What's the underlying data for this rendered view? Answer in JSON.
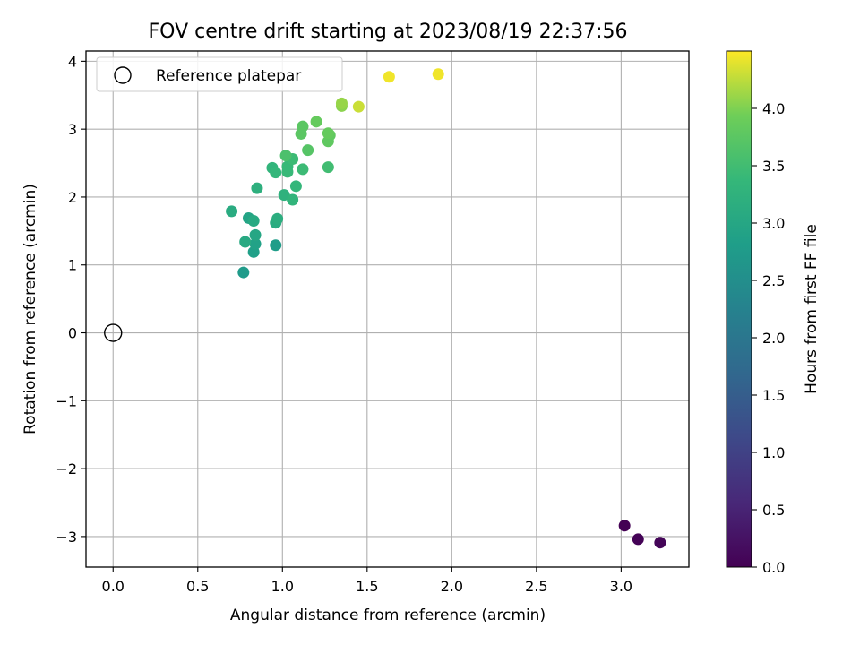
{
  "chart_data": {
    "type": "scatter",
    "title": "FOV centre drift starting at 2023/08/19 22:37:56",
    "xlabel": "Angular distance from reference (arcmin)",
    "ylabel": "Rotation from reference (arcmin)",
    "xlim": [
      -0.16,
      3.4
    ],
    "ylim": [
      -3.45,
      4.15
    ],
    "xticks": [
      0.0,
      0.5,
      1.0,
      1.5,
      2.0,
      2.5,
      3.0
    ],
    "xtick_labels": [
      "0.0",
      "0.5",
      "1.0",
      "1.5",
      "2.0",
      "2.5",
      "3.0"
    ],
    "yticks": [
      -3,
      -2,
      -1,
      0,
      1,
      2,
      3,
      4
    ],
    "ytick_labels": [
      "−3",
      "−2",
      "−1",
      "0",
      "1",
      "2",
      "3",
      "4"
    ],
    "grid": true,
    "legend": {
      "placement": "upper-left",
      "entries": [
        {
          "label": "Reference platepar",
          "marker": "open-circle",
          "x": 0.0,
          "y": 0.0
        }
      ]
    },
    "colorbar": {
      "label": "Hours from first FF file",
      "colormap": "viridis",
      "range": [
        0.0,
        4.5
      ],
      "ticks": [
        0.0,
        0.5,
        1.0,
        1.5,
        2.0,
        2.5,
        3.0,
        3.5,
        4.0
      ],
      "tick_labels": [
        "0.0",
        "0.5",
        "1.0",
        "1.5",
        "2.0",
        "2.5",
        "3.0",
        "3.5",
        "4.0"
      ]
    },
    "points": [
      {
        "x": 3.02,
        "y": -2.84,
        "hours": 0.0
      },
      {
        "x": 3.1,
        "y": -3.04,
        "hours": 0.03
      },
      {
        "x": 3.23,
        "y": -3.09,
        "hours": 0.06
      },
      {
        "x": 0.77,
        "y": 0.89,
        "hours": 2.75
      },
      {
        "x": 0.96,
        "y": 1.29,
        "hours": 2.8
      },
      {
        "x": 0.83,
        "y": 1.19,
        "hours": 2.85
      },
      {
        "x": 0.84,
        "y": 1.31,
        "hours": 2.9
      },
      {
        "x": 0.8,
        "y": 1.69,
        "hours": 2.95
      },
      {
        "x": 0.84,
        "y": 1.44,
        "hours": 3.0
      },
      {
        "x": 0.78,
        "y": 1.34,
        "hours": 3.05
      },
      {
        "x": 0.83,
        "y": 1.65,
        "hours": 3.05
      },
      {
        "x": 0.7,
        "y": 1.79,
        "hours": 3.1
      },
      {
        "x": 0.96,
        "y": 1.62,
        "hours": 3.1
      },
      {
        "x": 0.97,
        "y": 1.68,
        "hours": 3.15
      },
      {
        "x": 0.85,
        "y": 2.13,
        "hours": 3.2
      },
      {
        "x": 1.01,
        "y": 2.03,
        "hours": 3.25
      },
      {
        "x": 1.06,
        "y": 1.96,
        "hours": 3.3
      },
      {
        "x": 0.94,
        "y": 2.43,
        "hours": 3.3
      },
      {
        "x": 0.96,
        "y": 2.36,
        "hours": 3.35
      },
      {
        "x": 1.08,
        "y": 2.16,
        "hours": 3.35
      },
      {
        "x": 1.03,
        "y": 2.37,
        "hours": 3.4
      },
      {
        "x": 1.03,
        "y": 2.45,
        "hours": 3.4
      },
      {
        "x": 1.06,
        "y": 2.56,
        "hours": 3.45
      },
      {
        "x": 1.12,
        "y": 2.41,
        "hours": 3.45
      },
      {
        "x": 1.27,
        "y": 2.44,
        "hours": 3.5
      },
      {
        "x": 1.02,
        "y": 2.61,
        "hours": 3.6
      },
      {
        "x": 1.15,
        "y": 2.69,
        "hours": 3.7
      },
      {
        "x": 1.11,
        "y": 2.93,
        "hours": 3.75
      },
      {
        "x": 1.12,
        "y": 3.04,
        "hours": 3.75
      },
      {
        "x": 1.27,
        "y": 2.82,
        "hours": 3.8
      },
      {
        "x": 1.28,
        "y": 2.91,
        "hours": 3.8
      },
      {
        "x": 1.27,
        "y": 2.94,
        "hours": 3.85
      },
      {
        "x": 1.2,
        "y": 3.11,
        "hours": 3.85
      },
      {
        "x": 1.35,
        "y": 3.34,
        "hours": 4.05
      },
      {
        "x": 1.35,
        "y": 3.38,
        "hours": 4.1
      },
      {
        "x": 1.45,
        "y": 3.33,
        "hours": 4.3
      },
      {
        "x": 1.63,
        "y": 3.77,
        "hours": 4.45
      },
      {
        "x": 1.92,
        "y": 3.81,
        "hours": 4.45
      }
    ]
  }
}
